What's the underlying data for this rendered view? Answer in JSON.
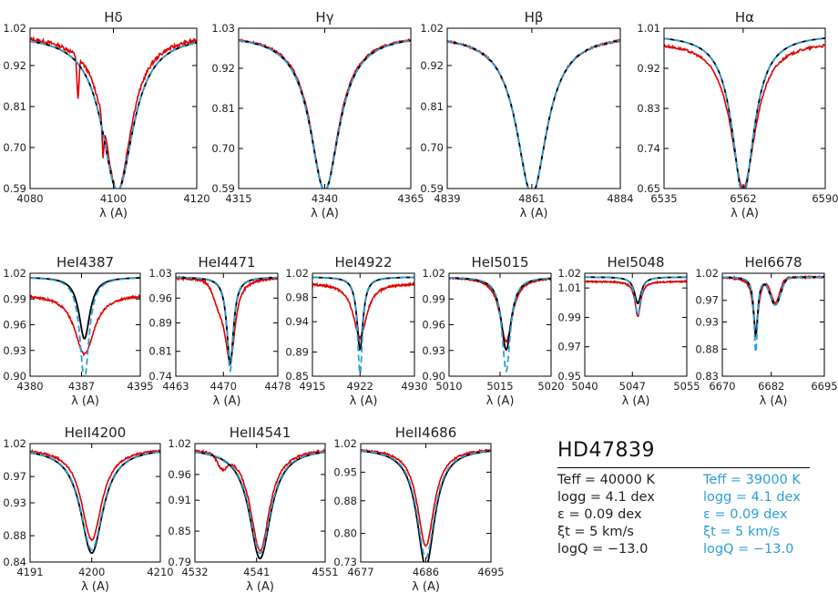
{
  "colors": {
    "observed": "#e00000",
    "model_a": "#000000",
    "model_b": "#2a9fd8"
  },
  "legend": {
    "star": "HD47839",
    "model_a": [
      "Teff = 40000 K",
      "logg = 4.1 dex",
      "ε = 0.09 dex",
      "ξt = 5 km/s",
      "logQ = −13.0"
    ],
    "model_b": [
      "Teff = 39000 K",
      "logg = 4.1 dex",
      "ε = 0.09 dex",
      "ξt = 5 km/s",
      "logQ = −13.0"
    ]
  },
  "chart_data": [
    {
      "type": "line",
      "title": "Hδ",
      "xlabel": "λ (A)",
      "xlim": [
        4080,
        4120
      ],
      "ylim": [
        0.59,
        1.02
      ],
      "xticks": [
        "4080",
        "4100",
        "4120"
      ],
      "yticks": [
        "1.02",
        "0.92",
        "0.81",
        "0.70",
        "0.59"
      ],
      "center": 4101,
      "series": [
        {
          "role": "observed",
          "depth": 0.42,
          "width": 4.0,
          "noise": 0.008,
          "extra": [
            [
              4091.5,
              -0.11,
              0.35
            ],
            [
              4097.5,
              -0.09,
              0.3
            ]
          ]
        },
        {
          "role": "model_a",
          "depth": 0.42,
          "width": 4.6,
          "core": 0.59
        },
        {
          "role": "model_b",
          "depth": 0.42,
          "width": 4.6,
          "core": 0.59
        }
      ]
    },
    {
      "type": "line",
      "title": "Hγ",
      "xlabel": "λ (A)",
      "xlim": [
        4315,
        4365
      ],
      "ylim": [
        0.59,
        1.03
      ],
      "xticks": [
        "4315",
        "4340",
        "4365"
      ],
      "yticks": [
        "1.03",
        "0.92",
        "0.81",
        "0.70",
        "0.59"
      ],
      "center": 4340,
      "series": [
        {
          "role": "observed",
          "depth": 0.43,
          "width": 5.0,
          "noise": 0.004
        },
        {
          "role": "model_a",
          "depth": 0.43,
          "width": 5.2
        },
        {
          "role": "model_b",
          "depth": 0.43,
          "width": 5.2
        }
      ]
    },
    {
      "type": "line",
      "title": "Hβ",
      "xlabel": "λ (A)",
      "xlim": [
        4839,
        4884
      ],
      "ylim": [
        0.59,
        1.02
      ],
      "xticks": [
        "4839",
        "4861",
        "4884"
      ],
      "yticks": [
        "1.02",
        "0.92",
        "0.81",
        "0.70",
        "0.59"
      ],
      "center": 4861,
      "series": [
        {
          "role": "observed",
          "depth": 0.43,
          "width": 4.8,
          "noise": 0.004
        },
        {
          "role": "model_a",
          "depth": 0.43,
          "width": 4.8
        },
        {
          "role": "model_b",
          "depth": 0.43,
          "width": 4.8
        }
      ]
    },
    {
      "type": "line",
      "title": "Hα",
      "xlabel": "λ (A)",
      "xlim": [
        6535,
        6590
      ],
      "ylim": [
        0.65,
        1.01
      ],
      "xticks": [
        "6535",
        "6562",
        "6590"
      ],
      "yticks": [
        "1.01",
        "0.92",
        "0.83",
        "0.74",
        "0.65"
      ],
      "center": 6562,
      "series": [
        {
          "role": "observed",
          "depth": 0.33,
          "width": 5.2,
          "noise": 0.005,
          "offset": -0.015
        },
        {
          "role": "model_a",
          "depth": 0.36,
          "width": 4.6
        },
        {
          "role": "model_b",
          "depth": 0.36,
          "width": 4.6
        }
      ]
    },
    {
      "type": "line",
      "title": "HeI4387",
      "xlabel": "λ (A)",
      "xlim": [
        4380,
        4395
      ],
      "ylim": [
        0.9,
        1.02
      ],
      "xticks": [
        "4380",
        "4387",
        "4395"
      ],
      "yticks": [
        "1.02",
        "0.99",
        "0.96",
        "0.93",
        "0.90"
      ],
      "center": 4387.4,
      "series": [
        {
          "role": "observed",
          "depth": 0.07,
          "width": 1.6,
          "noise": 0.006,
          "offset": -0.02
        },
        {
          "role": "model_a",
          "depth": 0.072,
          "width": 0.9
        },
        {
          "role": "model_b",
          "depth": 0.12,
          "width": 0.75
        }
      ]
    },
    {
      "type": "line",
      "title": "HeI4471",
      "xlabel": "λ (A)",
      "xlim": [
        4463,
        4478
      ],
      "ylim": [
        0.74,
        1.03
      ],
      "xticks": [
        "4463",
        "4470",
        "4478"
      ],
      "yticks": [
        "1.03",
        "0.96",
        "0.89",
        "0.81",
        "0.74"
      ],
      "center": 4471,
      "series": [
        {
          "role": "observed",
          "depth": 0.23,
          "width": 0.9,
          "noise": 0.006,
          "extra": [
            [
              4469.4,
              -0.05,
              1.2
            ]
          ]
        },
        {
          "role": "model_a",
          "depth": 0.245,
          "width": 0.6
        },
        {
          "role": "model_b",
          "depth": 0.265,
          "width": 0.55
        }
      ]
    },
    {
      "type": "line",
      "title": "HeI4922",
      "xlabel": "λ (A)",
      "xlim": [
        4915,
        4930
      ],
      "ylim": [
        0.85,
        1.02
      ],
      "xticks": [
        "4915",
        "4922",
        "4930"
      ],
      "yticks": [
        "1.02",
        "0.98",
        "0.94",
        "0.89",
        "0.85"
      ],
      "center": 4922,
      "series": [
        {
          "role": "observed",
          "depth": 0.09,
          "width": 1.2,
          "noise": 0.006,
          "offset": -0.01
        },
        {
          "role": "model_a",
          "depth": 0.12,
          "width": 0.55
        },
        {
          "role": "model_b",
          "depth": 0.16,
          "width": 0.45
        }
      ]
    },
    {
      "type": "line",
      "title": "HeI5015",
      "xlabel": "λ (A)",
      "xlim": [
        5010,
        5020
      ],
      "ylim": [
        0.9,
        1.02
      ],
      "xticks": [
        "5010",
        "5015",
        "5020"
      ],
      "yticks": [
        "1.02",
        "0.99",
        "0.96",
        "0.93",
        "0.90"
      ],
      "center": 5015.6,
      "series": [
        {
          "role": "observed",
          "depth": 0.075,
          "width": 0.75,
          "noise": 0.004
        },
        {
          "role": "model_a",
          "depth": 0.085,
          "width": 0.6
        },
        {
          "role": "model_b",
          "depth": 0.11,
          "width": 0.5
        }
      ]
    },
    {
      "type": "line",
      "title": "HeI5048",
      "xlabel": "λ (A)",
      "xlim": [
        5040,
        5055
      ],
      "ylim": [
        0.95,
        1.02
      ],
      "xticks": [
        "5040",
        "5047",
        "5055"
      ],
      "yticks": [
        "1.02",
        "1.01",
        "0.99",
        "0.97",
        "0.95"
      ],
      "center": 5047.8,
      "series": [
        {
          "role": "observed",
          "depth": 0.024,
          "width": 0.5,
          "noise": 0.004,
          "offset": -0.003
        },
        {
          "role": "model_a",
          "depth": 0.018,
          "width": 0.6,
          "cont": 1.0
        },
        {
          "role": "model_b",
          "depth": 0.026,
          "width": 0.5,
          "cont": 1.0
        }
      ]
    },
    {
      "type": "line",
      "title": "HeI6678",
      "xlabel": "λ (A)",
      "xlim": [
        6670,
        6695
      ],
      "ylim": [
        0.83,
        1.02
      ],
      "xticks": [
        "6670",
        "6682",
        "6695"
      ],
      "yticks": [
        "1.02",
        "0.97",
        "0.93",
        "0.88",
        "0.83"
      ],
      "center": 6678.2,
      "series": [
        {
          "role": "observed",
          "depth": 0.1,
          "width": 0.8,
          "noise": 0.005,
          "extra": [
            [
              6683,
              -0.045,
              1.5
            ]
          ]
        },
        {
          "role": "model_a",
          "depth": 0.11,
          "width": 0.6,
          "extra": [
            [
              6683,
              -0.05,
              1.8
            ]
          ]
        },
        {
          "role": "model_b",
          "depth": 0.14,
          "width": 0.5,
          "extra": [
            [
              6683,
              -0.05,
              1.8
            ]
          ]
        }
      ]
    },
    {
      "type": "line",
      "title": "HeII4200",
      "xlabel": "λ (A)",
      "xlim": [
        4191,
        4210
      ],
      "ylim": [
        0.84,
        1.02
      ],
      "xticks": [
        "4191",
        "4200",
        "4210"
      ],
      "yticks": [
        "1.02",
        "0.97",
        "0.93",
        "0.88",
        "0.84"
      ],
      "center": 4200,
      "series": [
        {
          "role": "observed",
          "depth": 0.14,
          "width": 1.8,
          "noise": 0.005
        },
        {
          "role": "model_a",
          "depth": 0.16,
          "width": 2.0
        },
        {
          "role": "model_b",
          "depth": 0.155,
          "width": 2.0
        }
      ]
    },
    {
      "type": "line",
      "title": "HeII4541",
      "xlabel": "λ (A)",
      "xlim": [
        4532,
        4551
      ],
      "ylim": [
        0.79,
        1.02
      ],
      "xticks": [
        "4532",
        "4541",
        "4551"
      ],
      "yticks": [
        "1.02",
        "0.96",
        "0.91",
        "0.85",
        "0.79"
      ],
      "center": 4541.5,
      "series": [
        {
          "role": "observed",
          "depth": 0.2,
          "width": 1.7,
          "noise": 0.006,
          "extra": [
            [
              4536,
              -0.025,
              1.0
            ]
          ]
        },
        {
          "role": "model_a",
          "depth": 0.215,
          "width": 1.9
        },
        {
          "role": "model_b",
          "depth": 0.205,
          "width": 1.9
        }
      ]
    },
    {
      "type": "line",
      "title": "HeII4686",
      "xlabel": "λ (A)",
      "xlim": [
        4677,
        4695
      ],
      "ylim": [
        0.73,
        1.02
      ],
      "xticks": [
        "4677",
        "4686",
        "4695"
      ],
      "yticks": [
        "1.02",
        "0.95",
        "0.88",
        "0.80",
        "0.73"
      ],
      "center": 4686,
      "series": [
        {
          "role": "observed",
          "depth": 0.24,
          "width": 1.4,
          "noise": 0.004
        },
        {
          "role": "model_a",
          "depth": 0.29,
          "width": 1.5
        },
        {
          "role": "model_b",
          "depth": 0.27,
          "width": 1.5
        }
      ]
    }
  ]
}
